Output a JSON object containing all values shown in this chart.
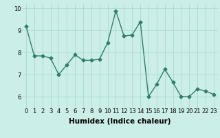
{
  "x": [
    0,
    1,
    2,
    3,
    4,
    5,
    6,
    7,
    8,
    9,
    10,
    11,
    12,
    13,
    14,
    15,
    16,
    17,
    18,
    19,
    20,
    21,
    22,
    23
  ],
  "y": [
    9.2,
    7.85,
    7.85,
    7.75,
    7.0,
    7.45,
    7.9,
    7.65,
    7.65,
    7.7,
    8.45,
    9.9,
    8.75,
    8.8,
    9.4,
    6.0,
    6.55,
    7.25,
    6.65,
    6.0,
    6.0,
    6.35,
    6.25,
    6.1
  ],
  "line_color": "#2e7d6e",
  "marker": "D",
  "marker_size": 2.5,
  "linewidth": 1.0,
  "xlabel": "Humidex (Indice chaleur)",
  "ylabel": "",
  "ylim": [
    5.5,
    10.2
  ],
  "xlim": [
    -0.5,
    23.5
  ],
  "bg_color": "#cceee8",
  "grid_color": "#aad8d0",
  "tick_fontsize": 6,
  "label_fontsize": 7.5
}
